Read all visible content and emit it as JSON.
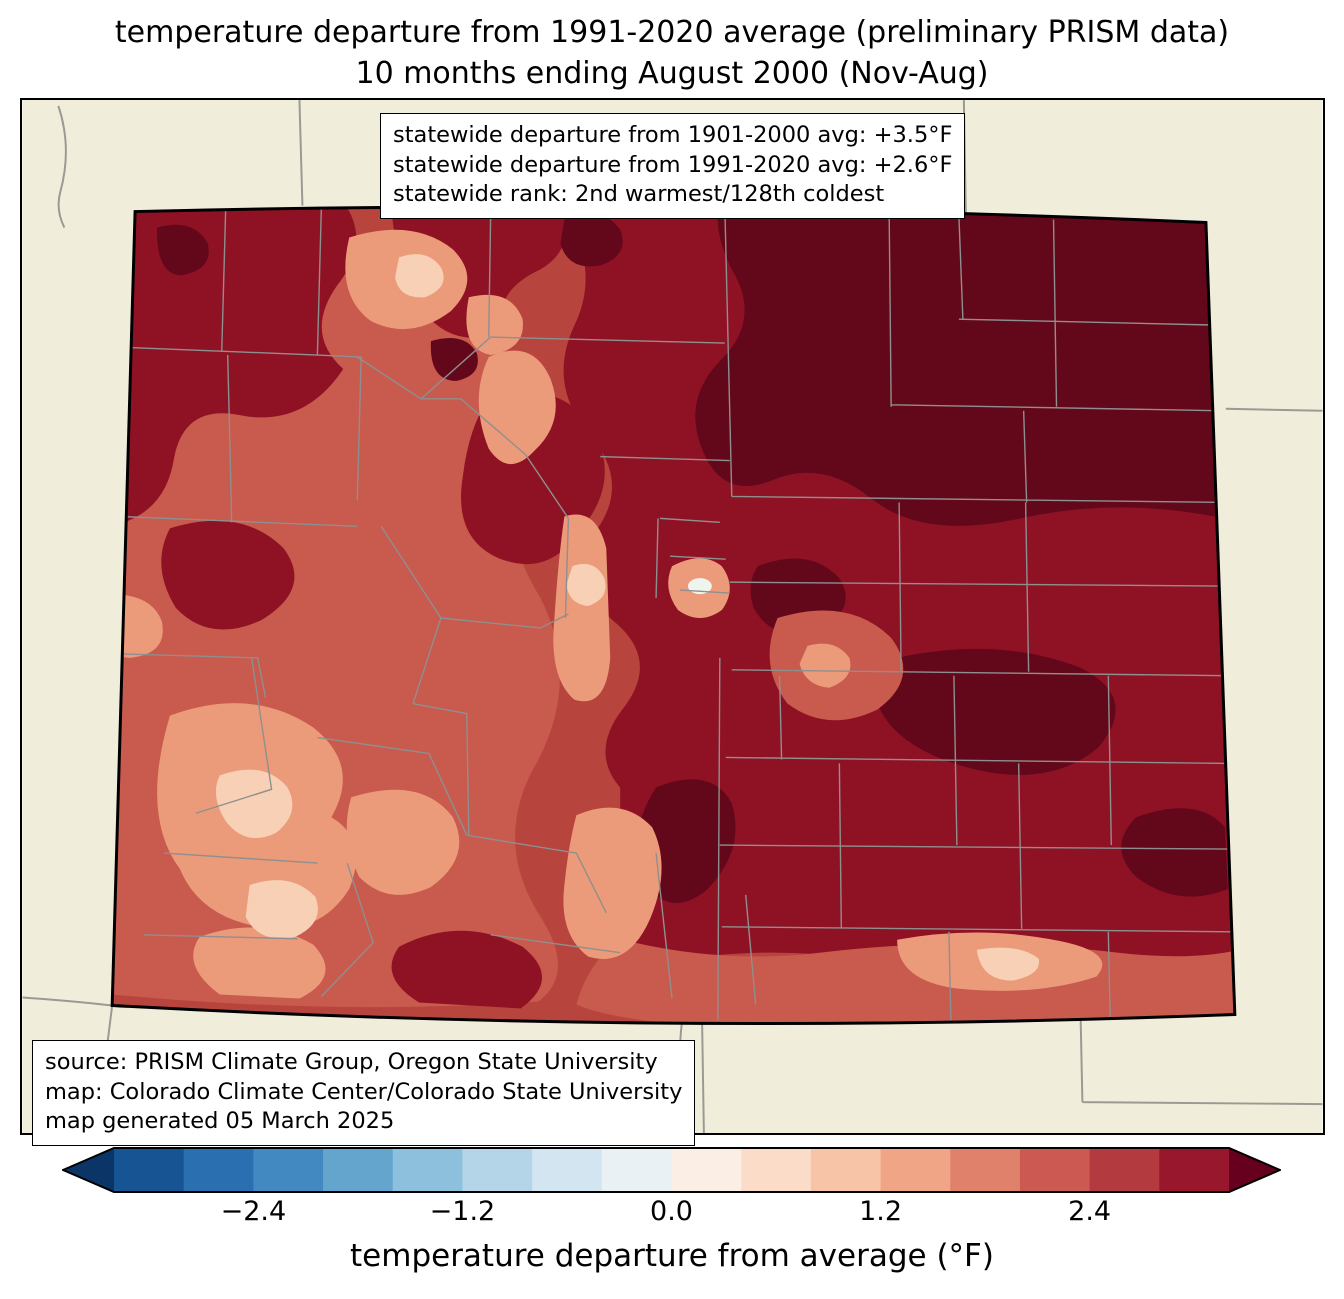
{
  "title": {
    "line1": "temperature departure from 1991-2020 average (preliminary PRISM data)",
    "line2": "10 months ending August 2000 (Nov-Aug)"
  },
  "stats_box": {
    "lines": [
      "statewide departure from 1901-2000 avg: +3.5°F",
      "statewide departure from 1991-2020 avg: +2.6°F",
      "statewide rank: 2nd warmest/128th coldest"
    ]
  },
  "source_box": {
    "lines": [
      "source: PRISM Climate Group, Oregon State University",
      "map: Colorado Climate Center/Colorado State University",
      "map generated 05 March 2025"
    ]
  },
  "colorbar": {
    "label": "temperature departure from average (°F)",
    "range": [
      -3.2,
      3.2
    ],
    "ticks": [
      {
        "label": "−2.4",
        "value": -2.4
      },
      {
        "label": "−1.2",
        "value": -1.2
      },
      {
        "label": "0.0",
        "value": 0.0
      },
      {
        "label": "1.2",
        "value": 1.2
      },
      {
        "label": "2.4",
        "value": 2.4
      }
    ],
    "segment_colors": [
      "#175493",
      "#2a6fb0",
      "#4189c0",
      "#64a5cd",
      "#8dc0dc",
      "#b3d5e7",
      "#d2e5f0",
      "#eaf1f4",
      "#faeee5",
      "#fbdcc8",
      "#f8c4a8",
      "#f1a587",
      "#e0816b",
      "#cc5a52",
      "#b33a3f",
      "#98172c"
    ],
    "left_arrow_color": "#0b3567",
    "right_arrow_color": "#67001f",
    "outline_color": "#000000"
  },
  "map": {
    "region_label": "Colorado",
    "colors": {
      "background": "#f0edda",
      "base": "#b8443e",
      "medium": "#c95a4e",
      "dark": "#8f1224",
      "darkest": "#63081a",
      "salmon": "#ec9b7a",
      "peach": "#f7d0b5",
      "white_spot": "#f0f4ef",
      "county_line": "#8f8f8f",
      "neighbor_line": "#9a9a92",
      "state_border": "#000000"
    }
  }
}
